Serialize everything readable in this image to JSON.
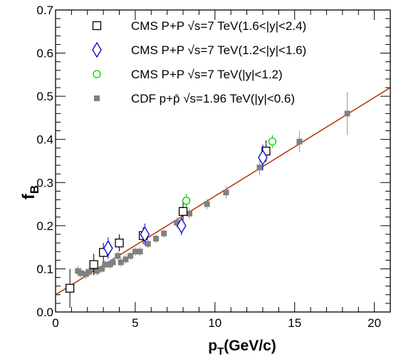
{
  "chart_data": {
    "type": "scatter",
    "xlabel": "p",
    "xlabel_sub": "T",
    "xlabel_suffix": "(GeV/c)",
    "ylabel": "f",
    "ylabel_sub": "B",
    "xlim": [
      0,
      21
    ],
    "ylim": [
      0,
      0.7
    ],
    "x_ticks": [
      {
        "value": 0,
        "label": "0"
      },
      {
        "value": 5,
        "label": "5"
      },
      {
        "value": 10,
        "label": "10"
      },
      {
        "value": 15,
        "label": "15"
      },
      {
        "value": 20,
        "label": "20"
      }
    ],
    "y_ticks": [
      {
        "value": 0,
        "label": "0.0"
      },
      {
        "value": 0.1,
        "label": "0.1"
      },
      {
        "value": 0.2,
        "label": "0.2"
      },
      {
        "value": 0.3,
        "label": "0.3"
      },
      {
        "value": 0.4,
        "label": "0.4"
      },
      {
        "value": 0.5,
        "label": "0.5"
      },
      {
        "value": 0.6,
        "label": "0.6"
      },
      {
        "value": 0.7,
        "label": "0.7"
      }
    ],
    "legend_position": "top-left",
    "series": [
      {
        "name": "CMS P+P √s=7 TeV(1.6<|y|<2.4)",
        "marker": "open-square",
        "color": "#000000",
        "points": [
          {
            "x": 0.9,
            "y": 0.055,
            "err": 0.045
          },
          {
            "x": 2.4,
            "y": 0.11,
            "err": 0.025
          },
          {
            "x": 3.0,
            "y": 0.138,
            "err": 0.022
          },
          {
            "x": 4.0,
            "y": 0.16,
            "err": 0.02
          },
          {
            "x": 5.5,
            "y": 0.177,
            "err": 0.02
          },
          {
            "x": 8.0,
            "y": 0.233,
            "err": 0.02
          },
          {
            "x": 13.2,
            "y": 0.373,
            "err": 0.025
          }
        ]
      },
      {
        "name": "CMS P+P √s=7 TeV(1.2<|y|<1.6)",
        "marker": "open-diamond",
        "color": "#0000cc",
        "points": [
          {
            "x": 3.3,
            "y": 0.148,
            "err": 0.025
          },
          {
            "x": 5.6,
            "y": 0.18,
            "err": 0.025
          },
          {
            "x": 7.9,
            "y": 0.2,
            "err": 0.022
          },
          {
            "x": 13.0,
            "y": 0.358,
            "err": 0.03
          }
        ]
      },
      {
        "name": "CMS P+P √s=7 TeV(|y|<1.2)",
        "marker": "open-circle",
        "color": "#00cc00",
        "points": [
          {
            "x": 8.2,
            "y": 0.258,
            "err": 0.016
          },
          {
            "x": 13.6,
            "y": 0.395,
            "err": 0.015
          }
        ]
      },
      {
        "name": "CDF p+p̄ √s=1.96 TeV(|y|<0.6)",
        "marker": "filled-square",
        "color": "#808080",
        "points": [
          {
            "x": 1.4,
            "y": 0.095,
            "err": 0.012
          },
          {
            "x": 1.6,
            "y": 0.09,
            "err": 0.012
          },
          {
            "x": 1.9,
            "y": 0.088,
            "err": 0.012
          },
          {
            "x": 2.1,
            "y": 0.093,
            "err": 0.01
          },
          {
            "x": 2.4,
            "y": 0.1,
            "err": 0.01
          },
          {
            "x": 2.6,
            "y": 0.095,
            "err": 0.01
          },
          {
            "x": 2.9,
            "y": 0.1,
            "err": 0.01
          },
          {
            "x": 3.1,
            "y": 0.11,
            "err": 0.01
          },
          {
            "x": 3.4,
            "y": 0.11,
            "err": 0.01
          },
          {
            "x": 3.6,
            "y": 0.115,
            "err": 0.01
          },
          {
            "x": 3.9,
            "y": 0.13,
            "err": 0.01
          },
          {
            "x": 4.1,
            "y": 0.115,
            "err": 0.01
          },
          {
            "x": 4.4,
            "y": 0.122,
            "err": 0.01
          },
          {
            "x": 4.7,
            "y": 0.13,
            "err": 0.01
          },
          {
            "x": 5.0,
            "y": 0.14,
            "err": 0.01
          },
          {
            "x": 5.3,
            "y": 0.14,
            "err": 0.01
          },
          {
            "x": 5.8,
            "y": 0.158,
            "err": 0.01
          },
          {
            "x": 6.3,
            "y": 0.17,
            "err": 0.01
          },
          {
            "x": 6.8,
            "y": 0.182,
            "err": 0.01
          },
          {
            "x": 7.6,
            "y": 0.207,
            "err": 0.012
          },
          {
            "x": 8.4,
            "y": 0.228,
            "err": 0.012
          },
          {
            "x": 9.5,
            "y": 0.25,
            "err": 0.012
          },
          {
            "x": 10.7,
            "y": 0.277,
            "err": 0.015
          },
          {
            "x": 12.8,
            "y": 0.335,
            "err": 0.018
          },
          {
            "x": 15.3,
            "y": 0.395,
            "err": 0.025
          },
          {
            "x": 18.3,
            "y": 0.46,
            "err": 0.05
          }
        ]
      }
    ],
    "fit_line": {
      "color": "#b33000",
      "x": [
        0,
        21
      ],
      "y": [
        0.04,
        0.52
      ]
    }
  }
}
